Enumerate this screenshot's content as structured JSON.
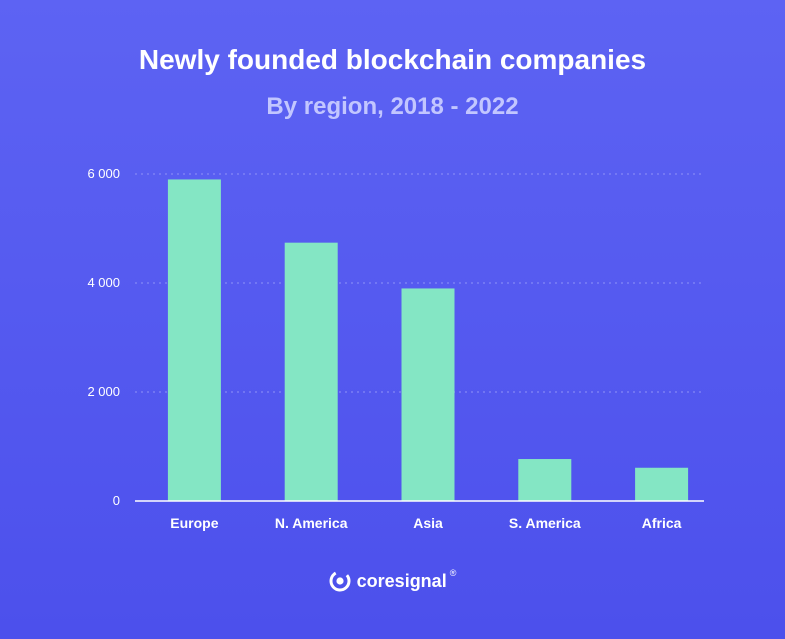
{
  "chart_data": {
    "type": "bar",
    "title": "Newly founded blockchain companies",
    "subtitle": "By region, 2018 - 2022",
    "categories": [
      "Europe",
      "N. America",
      "Asia",
      "S. America",
      "Africa"
    ],
    "values": [
      5900,
      4740,
      3900,
      770,
      610
    ],
    "xlabel": "",
    "ylabel": "",
    "ylim": [
      0,
      6000
    ],
    "yticks": [
      0,
      2000,
      4000,
      6000
    ],
    "ytick_labels": [
      "0",
      "2 000",
      "4 000",
      "6 000"
    ],
    "grid": true,
    "bar_color": "#84e6c4"
  },
  "brand": {
    "name": "coresignal",
    "registered": "®",
    "icon": "coresignal-logo-icon"
  }
}
